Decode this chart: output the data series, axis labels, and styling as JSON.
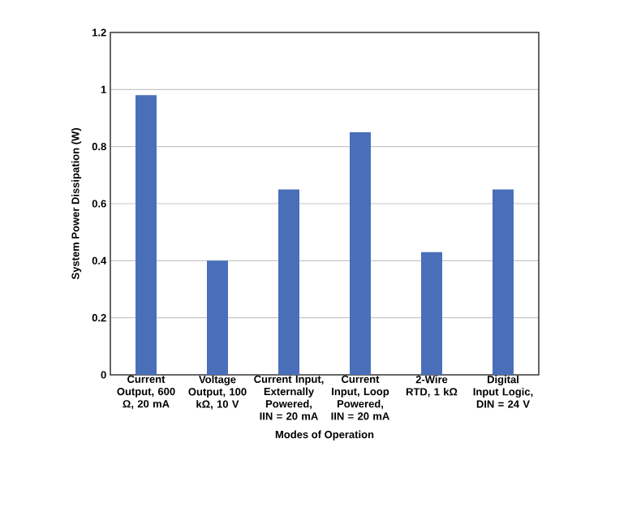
{
  "chart_data": {
    "type": "bar",
    "xlabel": "Modes of Operation",
    "ylabel": "System Power Dissipation (W)",
    "categories": [
      "Current Output, 600 Ω, 20 mA",
      "Voltage Output, 100 kΩ, 10 V",
      "Current Input, Externally Powered, IIN = 20 mA",
      "Current Input, Loop Powered, IIN = 20 mA",
      "2-Wire RTD, 1 kΩ",
      "Digital Input Logic, DIN = 24 V"
    ],
    "values": [
      0.98,
      0.4,
      0.65,
      0.85,
      0.43,
      0.65
    ],
    "color": "#4a6fba",
    "ylim": [
      0,
      1.2
    ],
    "yticks": [
      0,
      0.2,
      0.4,
      0.6,
      0.8,
      1,
      1.2
    ],
    "grid": "y"
  }
}
